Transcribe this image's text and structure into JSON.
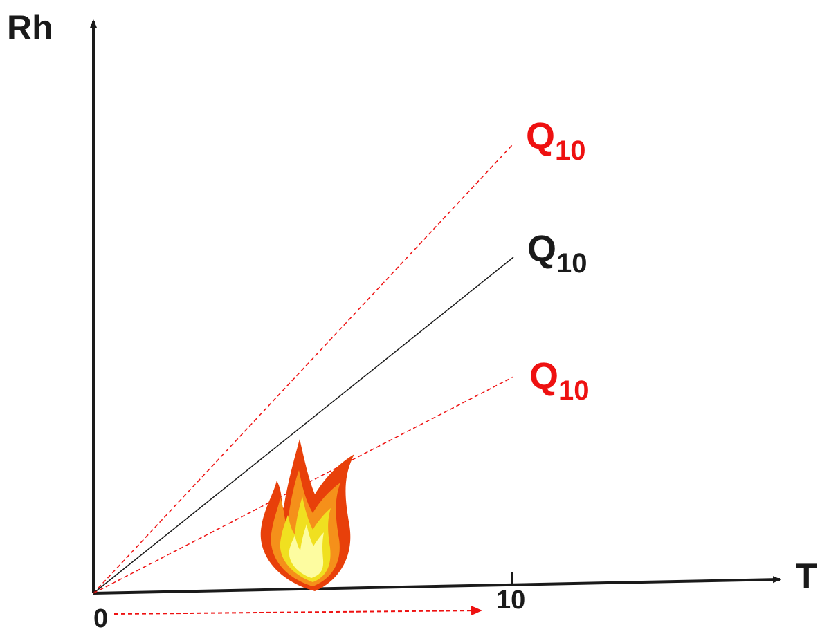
{
  "axes": {
    "y_label": "Rh",
    "x_label": "T",
    "origin_label": "0",
    "tick_label": "10"
  },
  "lines": [
    {
      "label": "Q",
      "subscript": "10",
      "color": "#ee1111",
      "dashed": true
    },
    {
      "label": "Q",
      "subscript": "10",
      "color": "#1a1a1a",
      "dashed": false
    },
    {
      "label": "Q",
      "subscript": "10",
      "color": "#ee1111",
      "dashed": true
    }
  ]
}
